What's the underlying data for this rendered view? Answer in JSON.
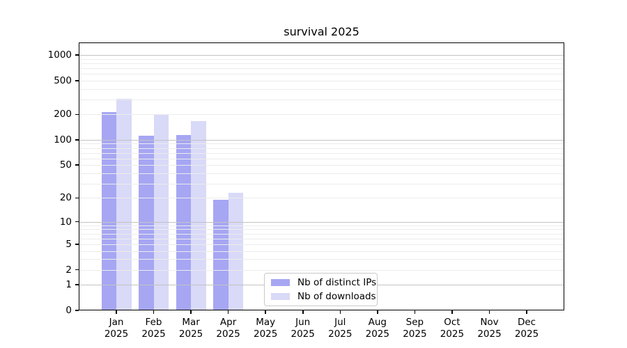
{
  "chart_data": {
    "type": "bar",
    "title": "survival 2025",
    "categories": [
      "Jan",
      "Feb",
      "Mar",
      "Apr",
      "May",
      "Jun",
      "Jul",
      "Aug",
      "Sep",
      "Oct",
      "Nov",
      "Dec"
    ],
    "category_sublabel": "2025",
    "series": [
      {
        "name": "Nb of distinct IPs",
        "color": "#a6a6f3",
        "values": [
          215,
          112,
          115,
          19,
          0,
          0,
          0,
          0,
          0,
          0,
          0,
          0
        ]
      },
      {
        "name": "Nb of downloads",
        "color": "#d9d9f8",
        "values": [
          305,
          197,
          167,
          23,
          0,
          0,
          0,
          0,
          0,
          0,
          0,
          0
        ]
      }
    ],
    "y_axis": {
      "scale": "log1p",
      "tick_values": [
        0,
        1,
        2,
        5,
        10,
        20,
        50,
        100,
        200,
        500,
        1000
      ],
      "major_gridlines": [
        1,
        10,
        100,
        1000
      ],
      "ylim": [
        0,
        1400
      ]
    },
    "x_axis": {
      "tick_count": 12
    },
    "legend": {
      "position": "lower-center-inside"
    },
    "colors": {
      "grid_major": "#c3c3c3",
      "grid_minor": "#ececec",
      "spine": "#000000",
      "background": "#ffffff"
    },
    "grid": true
  }
}
